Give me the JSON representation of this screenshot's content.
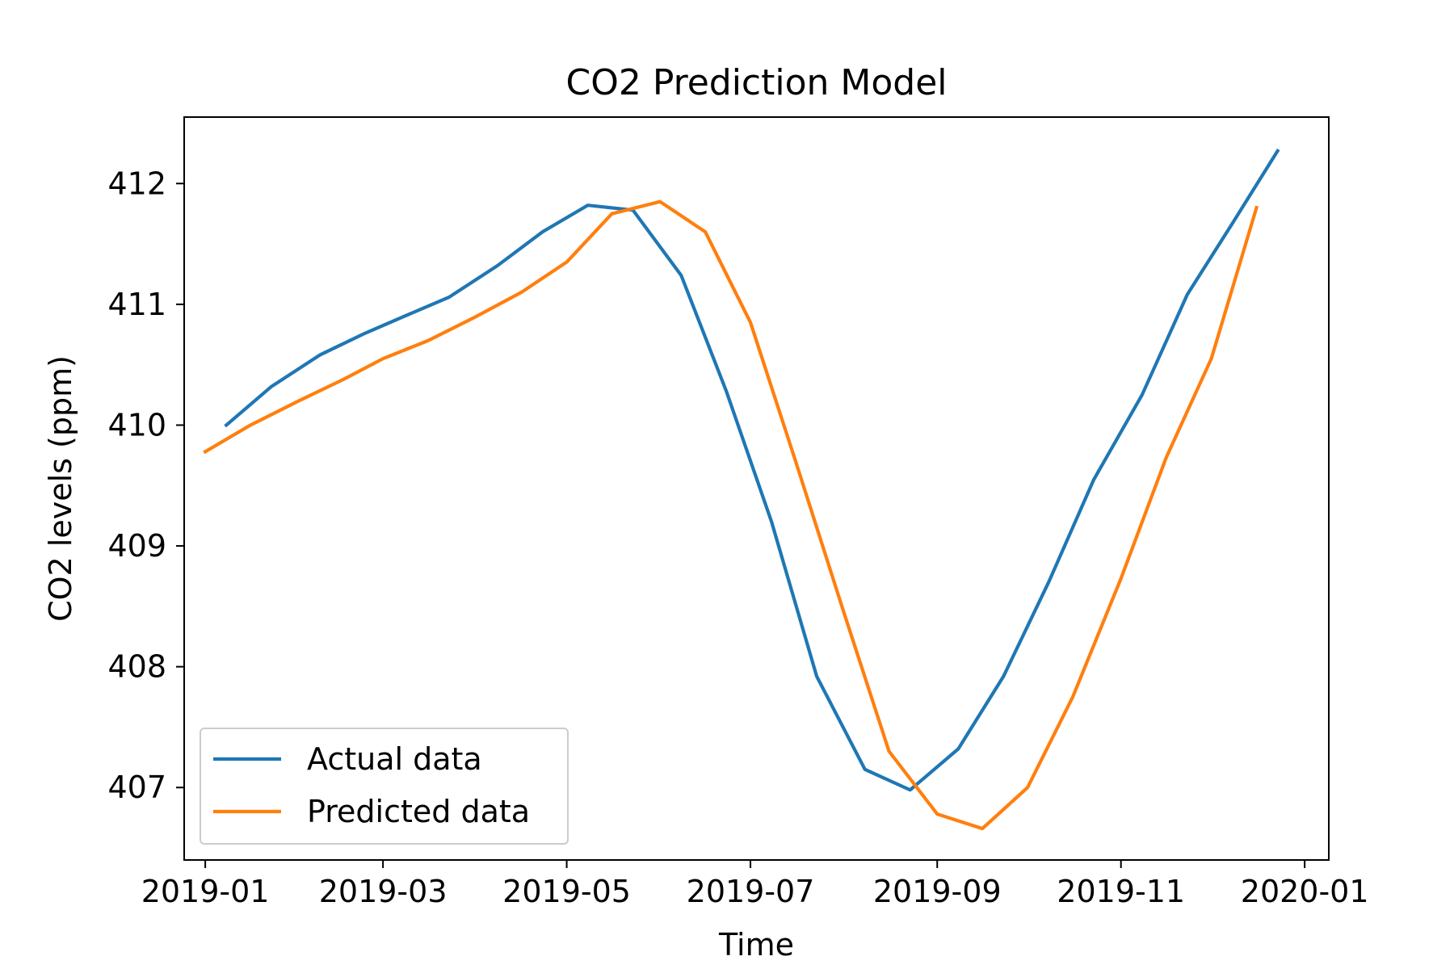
{
  "chart_data": {
    "type": "line",
    "title": "CO2 Prediction Model",
    "xlabel": "Time",
    "ylabel": "CO2 levels (ppm)",
    "x_axis_type": "date",
    "xlim": [
      "2018-12-25",
      "2020-01-09"
    ],
    "ylim": [
      406.4,
      412.55
    ],
    "x_ticks": [
      "2019-01-01",
      "2019-03-01",
      "2019-05-01",
      "2019-07-01",
      "2019-09-01",
      "2019-11-01",
      "2020-01-01"
    ],
    "x_tick_labels": [
      "2019-01",
      "2019-03",
      "2019-05",
      "2019-07",
      "2019-09",
      "2019-11",
      "2020-01"
    ],
    "y_ticks": [
      407,
      408,
      409,
      410,
      411,
      412
    ],
    "y_tick_labels": [
      "407",
      "408",
      "409",
      "410",
      "411",
      "412"
    ],
    "grid": false,
    "legend_position": "lower-left",
    "series": [
      {
        "name": "Actual data",
        "color": "#1f77b4",
        "x": [
          "2019-01-08",
          "2019-01-23",
          "2019-02-08",
          "2019-02-23",
          "2019-03-08",
          "2019-03-23",
          "2019-04-08",
          "2019-04-23",
          "2019-05-08",
          "2019-05-23",
          "2019-06-08",
          "2019-06-23",
          "2019-07-08",
          "2019-07-23",
          "2019-08-08",
          "2019-08-23",
          "2019-09-08",
          "2019-09-23",
          "2019-10-08",
          "2019-10-23",
          "2019-11-08",
          "2019-11-23",
          "2019-12-08",
          "2019-12-23"
        ],
        "values": [
          410.0,
          410.32,
          410.58,
          410.76,
          410.9,
          411.06,
          411.32,
          411.6,
          411.82,
          411.78,
          411.24,
          410.28,
          409.2,
          407.92,
          407.15,
          406.98,
          407.32,
          407.92,
          408.7,
          409.55,
          410.25,
          411.08,
          411.67,
          412.27
        ]
      },
      {
        "name": "Predicted data",
        "color": "#ff7f0e",
        "x": [
          "2019-01-01",
          "2019-01-16",
          "2019-02-01",
          "2019-02-16",
          "2019-03-01",
          "2019-03-16",
          "2019-04-01",
          "2019-04-16",
          "2019-05-01",
          "2019-05-16",
          "2019-06-01",
          "2019-06-16",
          "2019-07-01",
          "2019-07-16",
          "2019-08-01",
          "2019-08-16",
          "2019-09-01",
          "2019-09-16",
          "2019-10-01",
          "2019-10-16",
          "2019-11-01",
          "2019-11-16",
          "2019-12-01",
          "2019-12-16"
        ],
        "values": [
          409.78,
          410.0,
          410.2,
          410.38,
          410.55,
          410.7,
          410.9,
          411.1,
          411.35,
          411.75,
          411.85,
          411.6,
          410.85,
          409.7,
          408.45,
          407.3,
          406.78,
          406.66,
          407.0,
          407.75,
          408.73,
          409.73,
          410.55,
          411.8
        ]
      }
    ]
  }
}
